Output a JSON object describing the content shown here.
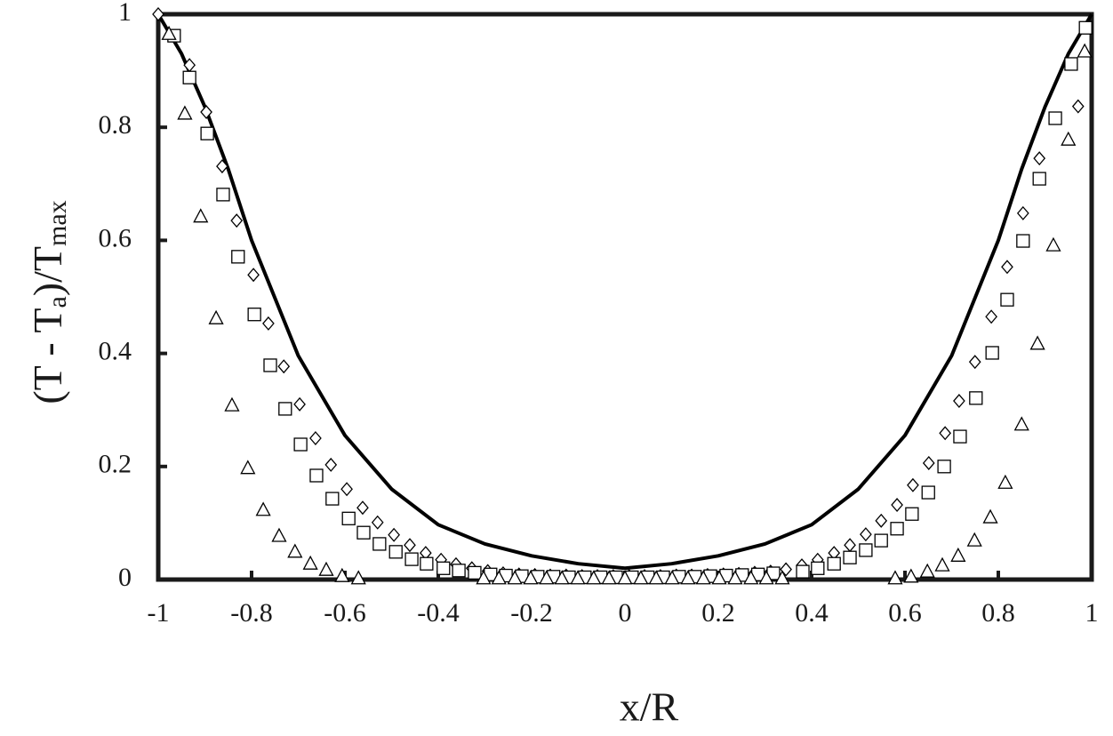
{
  "chart_data": {
    "type": "scatter",
    "xlabel": "x/R",
    "ylabel": [
      "(T - T",
      "a",
      ")/T",
      "max"
    ],
    "xlim": [
      -1,
      1
    ],
    "ylim": [
      0,
      1
    ],
    "xticks": [
      -1,
      -0.8,
      -0.6,
      -0.4,
      -0.2,
      0,
      0.2,
      0.4,
      0.6,
      0.8,
      1
    ],
    "yticks": [
      0,
      0.2,
      0.4,
      0.6,
      0.8,
      1
    ],
    "series": [
      {
        "marker": "line",
        "color": "#000000",
        "x": [
          -1,
          -0.95,
          -0.9,
          -0.85,
          -0.8,
          -0.75,
          -0.7,
          -0.6,
          -0.5,
          -0.4,
          -0.3,
          -0.2,
          -0.1,
          0,
          0.1,
          0.2,
          0.3,
          0.4,
          0.5,
          0.6,
          0.7,
          0.75,
          0.8,
          0.85,
          0.9,
          0.95,
          1
        ],
        "values": [
          1,
          0.93,
          0.836,
          0.726,
          0.6,
          0.498,
          0.396,
          0.255,
          0.16,
          0.097,
          0.063,
          0.042,
          0.028,
          0.02,
          0.028,
          0.042,
          0.063,
          0.097,
          0.16,
          0.255,
          0.396,
          0.498,
          0.6,
          0.726,
          0.836,
          0.93,
          1
        ]
      },
      {
        "marker": "diamond",
        "color": "#000000",
        "x": [
          -1,
          -0.933,
          -0.897,
          -0.863,
          -0.832,
          -0.796,
          -0.764,
          -0.731,
          -0.697,
          -0.663,
          -0.63,
          -0.596,
          -0.562,
          -0.53,
          -0.495,
          -0.461,
          -0.427,
          -0.394,
          -0.362,
          -0.328,
          -0.294,
          -0.261,
          -0.227,
          -0.193,
          -0.16,
          -0.126,
          -0.092,
          -0.059,
          -0.025,
          0.009,
          0.042,
          0.076,
          0.11,
          0.143,
          0.177,
          0.211,
          0.244,
          0.278,
          0.312,
          0.345,
          0.379,
          0.413,
          0.448,
          0.482,
          0.516,
          0.549,
          0.583,
          0.617,
          0.651,
          0.686,
          0.716,
          0.75,
          0.785,
          0.819,
          0.853,
          0.888,
          0.971
        ],
        "values": [
          1,
          0.91,
          0.827,
          0.731,
          0.635,
          0.539,
          0.453,
          0.377,
          0.31,
          0.25,
          0.203,
          0.16,
          0.127,
          0.101,
          0.079,
          0.061,
          0.047,
          0.035,
          0.027,
          0.02,
          0.015,
          0.011,
          0.009,
          0.008,
          0.007,
          0.007,
          0.006,
          0.006,
          0.006,
          0.006,
          0.006,
          0.006,
          0.007,
          0.007,
          0.008,
          0.009,
          0.01,
          0.012,
          0.014,
          0.018,
          0.025,
          0.035,
          0.047,
          0.061,
          0.08,
          0.104,
          0.132,
          0.167,
          0.206,
          0.259,
          0.316,
          0.385,
          0.465,
          0.553,
          0.648,
          0.745,
          0.837
        ]
      },
      {
        "marker": "square",
        "color": "#000000",
        "x": [
          -0.966,
          -0.933,
          -0.895,
          -0.861,
          -0.829,
          -0.794,
          -0.76,
          -0.728,
          -0.695,
          -0.661,
          -0.627,
          -0.592,
          -0.56,
          -0.526,
          -0.491,
          -0.457,
          -0.425,
          -0.389,
          -0.356,
          -0.322,
          -0.288,
          -0.255,
          -0.221,
          -0.187,
          -0.153,
          -0.12,
          -0.086,
          -0.052,
          -0.019,
          0.015,
          0.049,
          0.082,
          0.116,
          0.15,
          0.183,
          0.217,
          0.251,
          0.285,
          0.318,
          0.381,
          0.413,
          0.448,
          0.482,
          0.516,
          0.549,
          0.583,
          0.615,
          0.65,
          0.684,
          0.718,
          0.752,
          0.787,
          0.819,
          0.853,
          0.888,
          0.922,
          0.956,
          0.987
        ],
        "values": [
          0.962,
          0.888,
          0.789,
          0.681,
          0.571,
          0.469,
          0.379,
          0.302,
          0.239,
          0.184,
          0.143,
          0.108,
          0.083,
          0.063,
          0.049,
          0.036,
          0.028,
          0.02,
          0.016,
          0.012,
          0.009,
          0.007,
          0.006,
          0.005,
          0.005,
          0.004,
          0.004,
          0.004,
          0.004,
          0.004,
          0.004,
          0.004,
          0.005,
          0.005,
          0.006,
          0.007,
          0.008,
          0.009,
          0.011,
          0.014,
          0.02,
          0.028,
          0.039,
          0.052,
          0.069,
          0.09,
          0.116,
          0.154,
          0.2,
          0.253,
          0.321,
          0.401,
          0.495,
          0.599,
          0.709,
          0.816,
          0.912,
          0.976
        ]
      },
      {
        "marker": "triangle",
        "color": "#000000",
        "x": [
          -0.977,
          -0.943,
          -0.909,
          -0.876,
          -0.842,
          -0.808,
          -0.775,
          -0.741,
          -0.707,
          -0.674,
          -0.64,
          -0.606,
          -0.571,
          -0.303,
          -0.27,
          -0.236,
          -0.202,
          -0.168,
          -0.135,
          -0.101,
          -0.067,
          -0.034,
          0,
          0.034,
          0.067,
          0.101,
          0.135,
          0.168,
          0.202,
          0.236,
          0.27,
          0.303,
          0.337,
          0.579,
          0.613,
          0.648,
          0.68,
          0.714,
          0.749,
          0.783,
          0.815,
          0.85,
          0.884,
          0.918,
          0.95,
          0.985
        ],
        "values": [
          0.965,
          0.824,
          0.642,
          0.462,
          0.308,
          0.197,
          0.123,
          0.077,
          0.049,
          0.028,
          0.017,
          0.006,
          0.002,
          0.002,
          0.002,
          0.002,
          0.002,
          0.002,
          0.002,
          0.002,
          0.002,
          0.002,
          0.002,
          0.002,
          0.002,
          0.002,
          0.002,
          0.002,
          0.002,
          0.002,
          0.002,
          0.002,
          0.002,
          0.002,
          0.005,
          0.014,
          0.025,
          0.042,
          0.069,
          0.11,
          0.171,
          0.274,
          0.417,
          0.591,
          0.778,
          0.934
        ]
      }
    ]
  }
}
